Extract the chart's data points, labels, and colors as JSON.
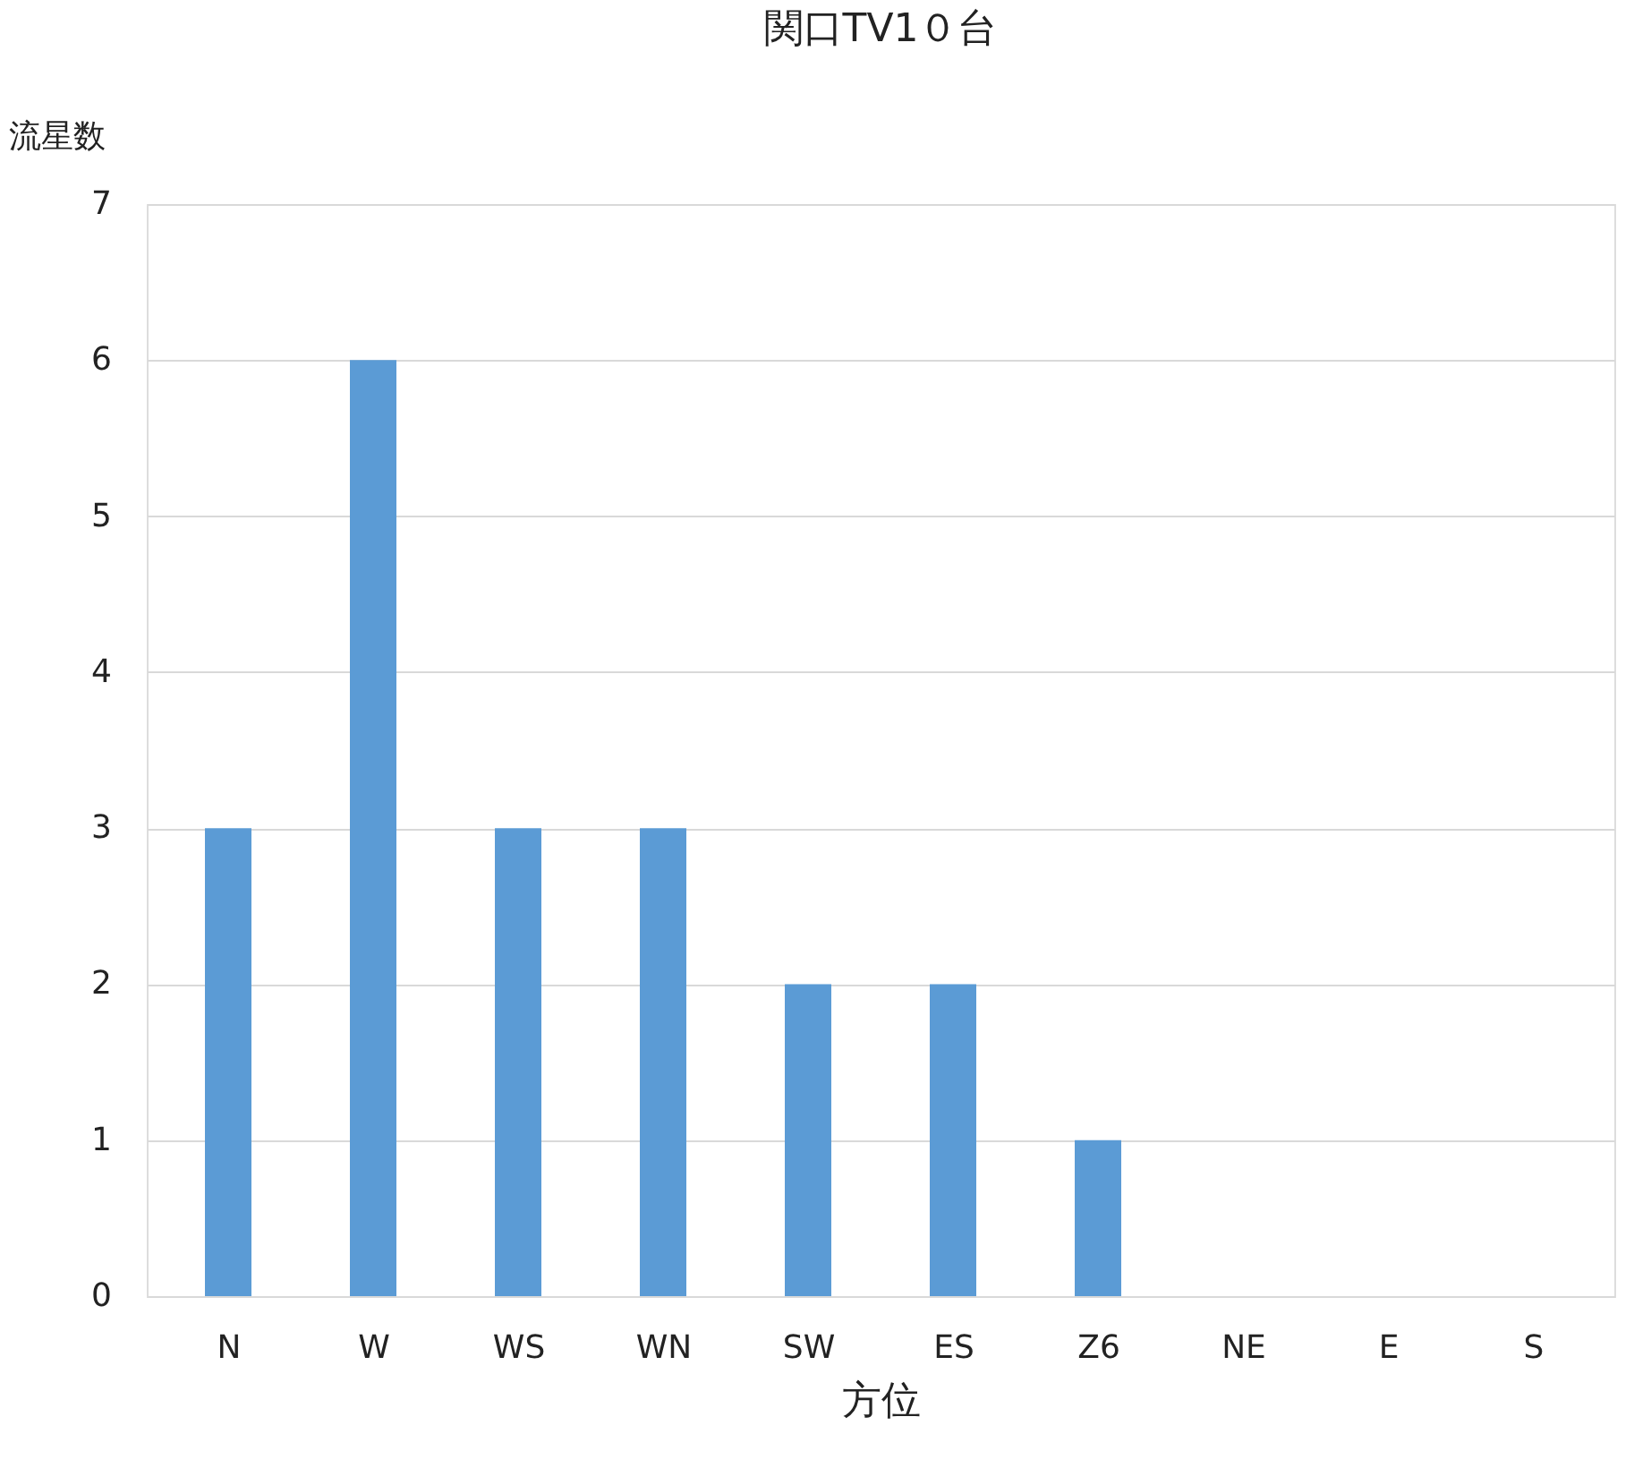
{
  "chart_data": {
    "type": "bar",
    "title": "関口TV1０台",
    "xlabel": "方位",
    "ylabel": "流星数",
    "categories": [
      "N",
      "W",
      "WS",
      "WN",
      "SW",
      "ES",
      "Z6",
      "NE",
      "E",
      "S"
    ],
    "values": [
      3,
      6,
      3,
      3,
      2,
      2,
      1,
      0,
      0,
      0
    ],
    "color": "#5b9bd5",
    "ylim": [
      0,
      7
    ],
    "yticks": [
      0,
      1,
      2,
      3,
      4,
      5,
      6,
      7
    ],
    "grid": "y"
  }
}
